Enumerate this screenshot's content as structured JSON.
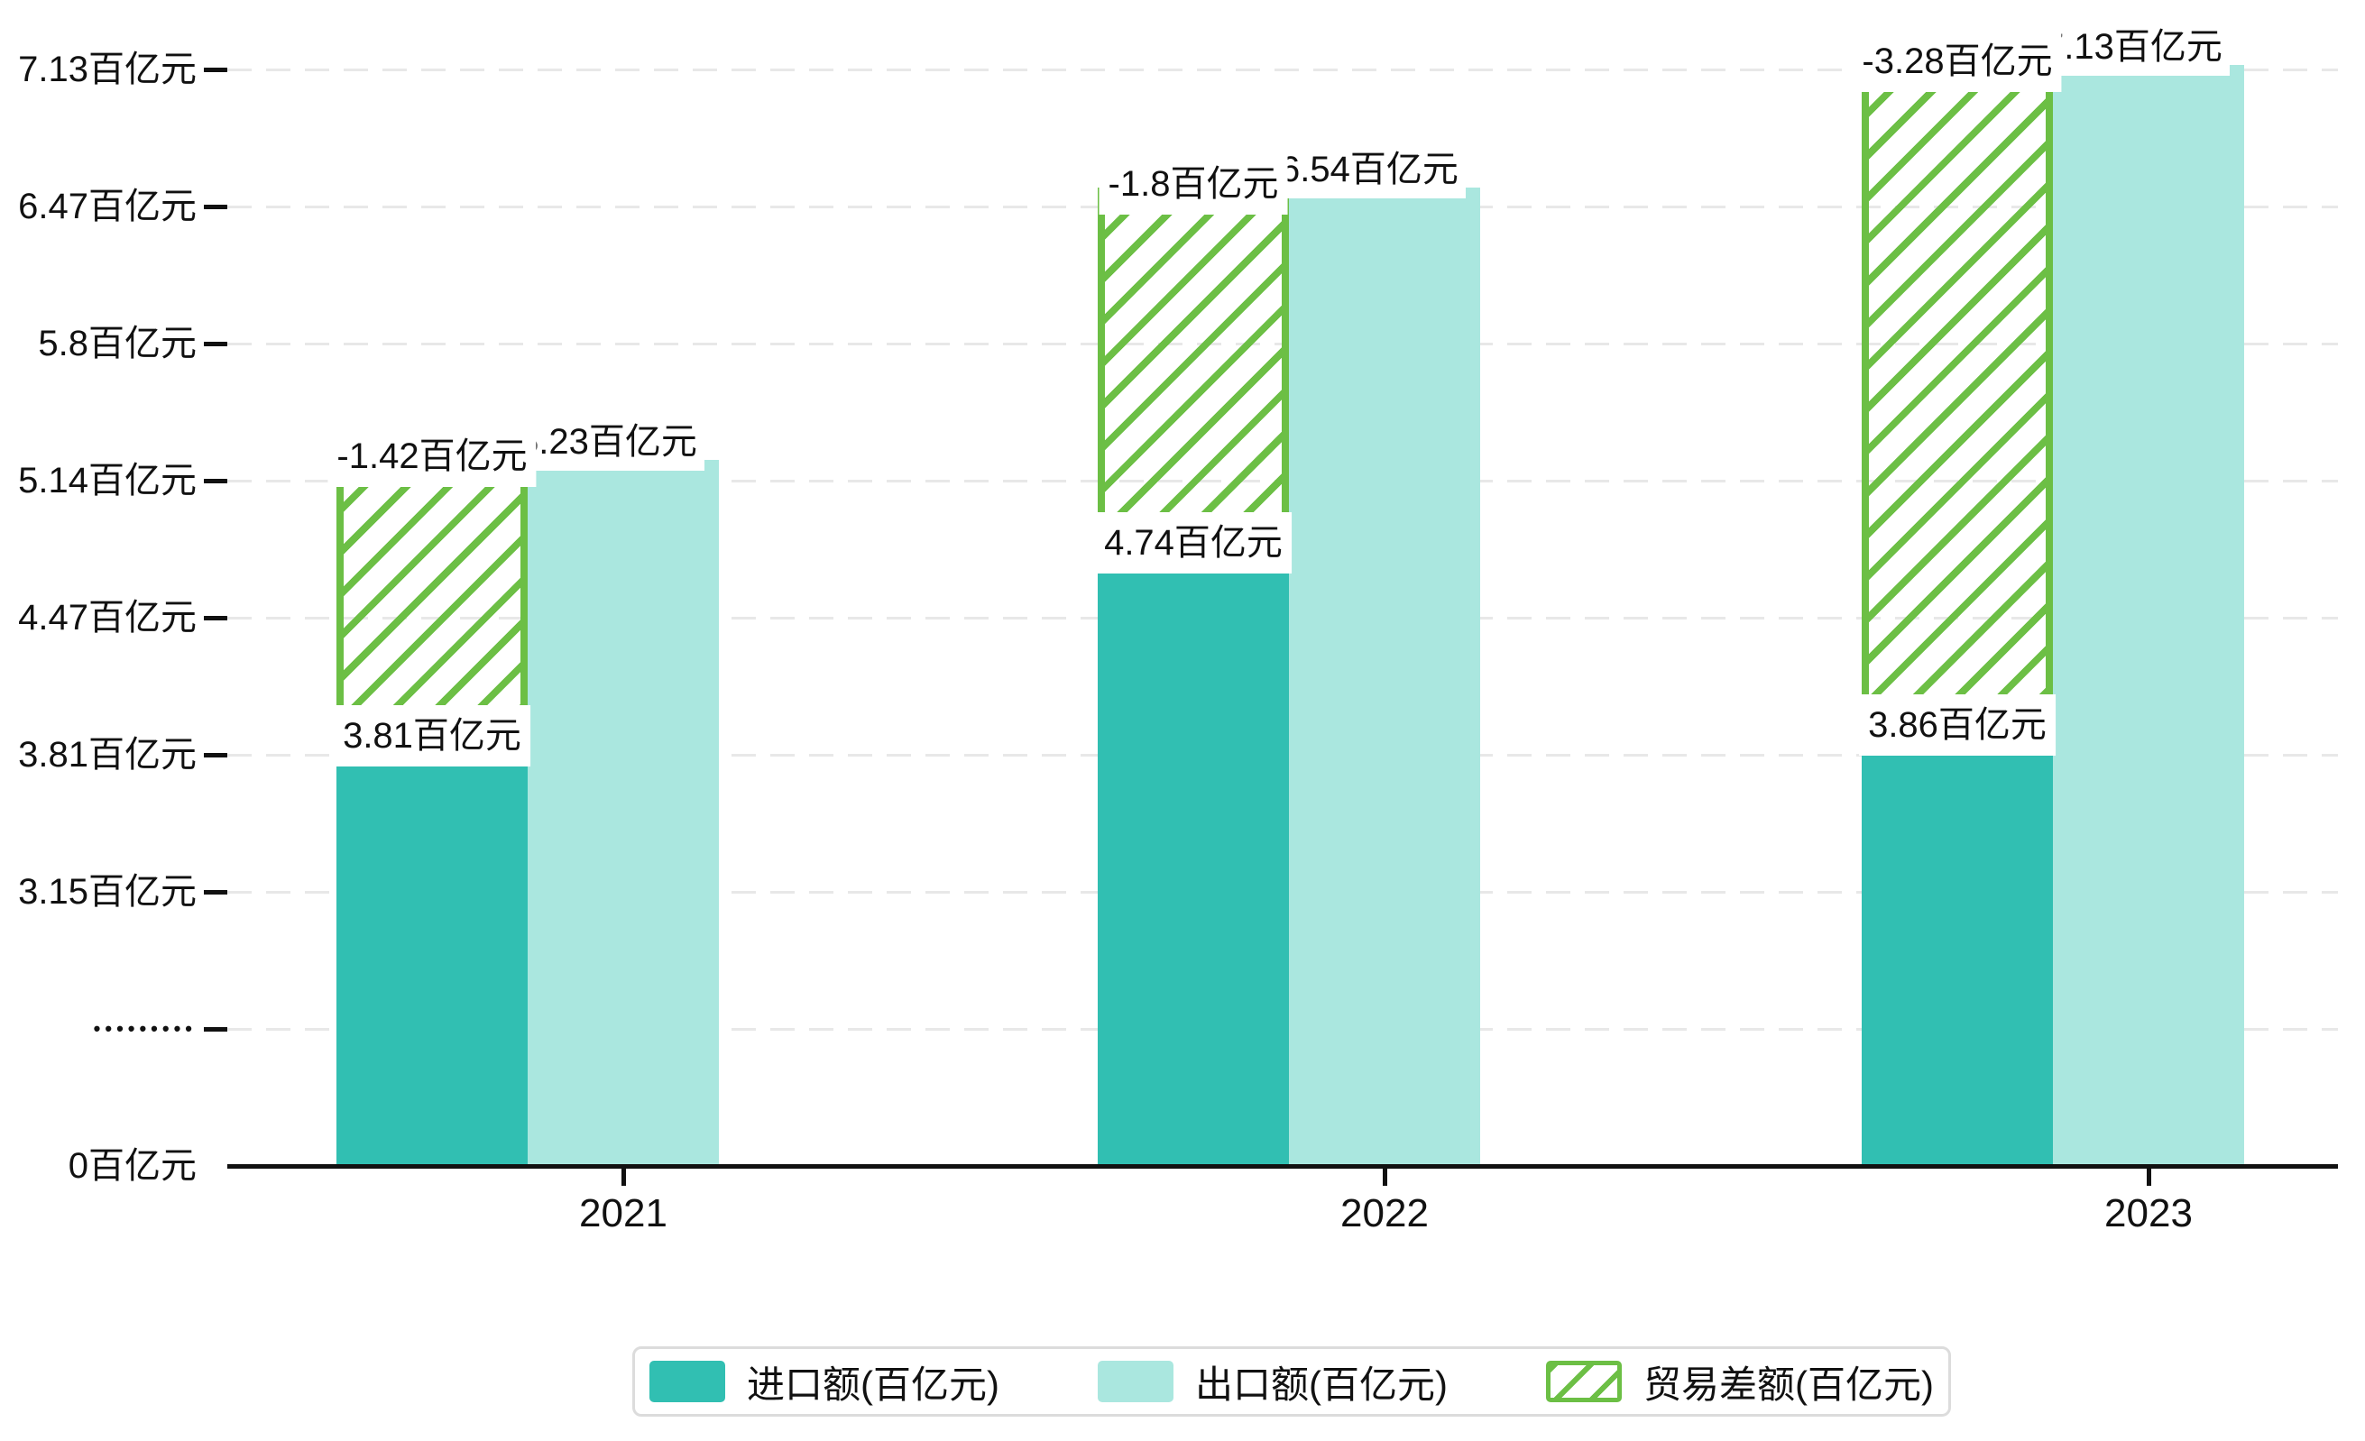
{
  "chart_data": {
    "type": "bar",
    "title": "",
    "categories": [
      "2021",
      "2022",
      "2023"
    ],
    "series": [
      {
        "name": "进口额(百亿元)",
        "key": "import",
        "values": [
          3.81,
          4.74,
          3.86
        ],
        "labels": [
          "3.81百亿元",
          "4.74百亿元",
          "3.86百亿元"
        ],
        "color": "#31bfb2"
      },
      {
        "name": "出口额(百亿元)",
        "key": "export",
        "values": [
          5.23,
          6.54,
          7.13
        ],
        "labels": [
          "5.23百亿元",
          "6.54百亿元",
          "7.13百亿元"
        ],
        "color": "#aae7df"
      },
      {
        "name": "贸易差额(百亿元)",
        "key": "balance",
        "values": [
          -1.42,
          -1.8,
          -3.28
        ],
        "labels": [
          "-1.42百亿元",
          "-1.8百亿元",
          "-3.28百亿元"
        ],
        "color": "#6cbf45",
        "style": "hatched"
      }
    ],
    "y_axis": {
      "unit": "百亿元",
      "tick_labels": [
        "7.13百亿元",
        "6.47百亿元",
        "5.8百亿元",
        "5.14百亿元",
        "4.47百亿元",
        "3.81百亿元",
        "3.15百亿元",
        "•••••••••",
        "0百亿元"
      ],
      "axis_break": true,
      "ylim_display": [
        0,
        7.13
      ]
    },
    "x_axis": {
      "tick_labels": [
        "2021",
        "2022",
        "2023"
      ]
    },
    "grid": true,
    "legend_position": "bottom"
  },
  "colors": {
    "import": "#31bfb2",
    "export": "#aae7df",
    "balance": "#6cbf45",
    "grid": "#e8e8e8",
    "axis": "#111111",
    "legend_border": "#dcdcdc",
    "label_bg": "#ffffff",
    "text": "#111111"
  }
}
